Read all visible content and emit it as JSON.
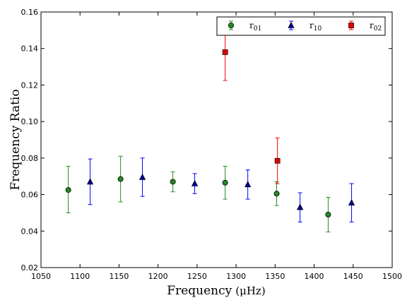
{
  "chart_data": {
    "type": "scatter",
    "title": "",
    "xlabel": "Frequency",
    "xlabel_unit": "(μHz)",
    "ylabel": "Frequency Ratio",
    "xlim": [
      1050,
      1500
    ],
    "ylim": [
      0.02,
      0.16
    ],
    "x_ticks": [
      "1050",
      "1100",
      "1150",
      "1200",
      "1250",
      "1300",
      "1350",
      "1400",
      "1450",
      "1500"
    ],
    "y_ticks": [
      "0.02",
      "0.04",
      "0.06",
      "0.08",
      "0.10",
      "0.12",
      "0.14",
      "0.16"
    ],
    "grid": false,
    "legend_position": "top-right",
    "series": [
      {
        "name": "r",
        "subscript": "01",
        "marker": "circle",
        "color": "#228b22",
        "errorbar_color": "#228b22",
        "points": [
          {
            "x": 1085,
            "y": 0.0625,
            "err_low": 0.0125,
            "err_high": 0.013
          },
          {
            "x": 1152,
            "y": 0.0685,
            "err_low": 0.0125,
            "err_high": 0.0125
          },
          {
            "x": 1219,
            "y": 0.067,
            "err_low": 0.0055,
            "err_high": 0.0055
          },
          {
            "x": 1286,
            "y": 0.0665,
            "err_low": 0.009,
            "err_high": 0.009
          },
          {
            "x": 1352,
            "y": 0.0605,
            "err_low": 0.0065,
            "err_high": 0.0065
          },
          {
            "x": 1418,
            "y": 0.049,
            "err_low": 0.0095,
            "err_high": 0.0095
          }
        ]
      },
      {
        "name": "r",
        "subscript": "10",
        "marker": "triangle",
        "color": "#00008b",
        "errorbar_color": "#0000ff",
        "points": [
          {
            "x": 1113,
            "y": 0.067,
            "err_low": 0.0125,
            "err_high": 0.0125
          },
          {
            "x": 1180,
            "y": 0.0695,
            "err_low": 0.0105,
            "err_high": 0.0105
          },
          {
            "x": 1247,
            "y": 0.066,
            "err_low": 0.0055,
            "err_high": 0.0055
          },
          {
            "x": 1315,
            "y": 0.0655,
            "err_low": 0.008,
            "err_high": 0.008
          },
          {
            "x": 1382,
            "y": 0.053,
            "err_low": 0.008,
            "err_high": 0.008
          },
          {
            "x": 1448,
            "y": 0.0555,
            "err_low": 0.0105,
            "err_high": 0.0105
          }
        ]
      },
      {
        "name": "r",
        "subscript": "02",
        "marker": "square",
        "color": "#dd0000",
        "errorbar_color": "#ff0000",
        "points": [
          {
            "x": 1286,
            "y": 0.138,
            "err_low": 0.0155,
            "err_high": 0.0155
          },
          {
            "x": 1353,
            "y": 0.0785,
            "err_low": 0.0125,
            "err_high": 0.0125
          }
        ]
      }
    ]
  }
}
